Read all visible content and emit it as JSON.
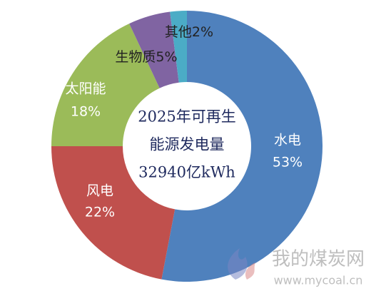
{
  "chart_data": {
    "type": "donut",
    "categories": [
      "水电",
      "风电",
      "太阳能",
      "生物质",
      "其他"
    ],
    "values": [
      53,
      22,
      18,
      5,
      2
    ],
    "value_labels": [
      "53%",
      "22%",
      "18%",
      "5%",
      "2%"
    ],
    "colors": [
      "#4f81bd",
      "#c0504d",
      "#9bbb59",
      "#8064a2",
      "#4bacc6"
    ],
    "center_text": [
      "2025年可再生",
      "能源发电量",
      "32940亿kWh"
    ]
  },
  "watermark": {
    "name": "我的煤炭网",
    "url": "www.mycoal.cn"
  }
}
